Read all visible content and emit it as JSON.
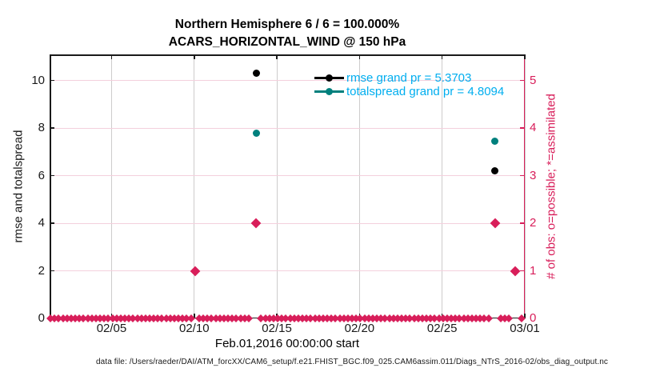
{
  "title": {
    "line1": "Northern Hemisphere 6 / 6 = 100.000%",
    "line2": "ACARS_HORIZONTAL_WIND @ 150 hPa"
  },
  "axes": {
    "left_label": "rmse and totalspread",
    "right_label": "# of obs: o=possible; *=assimilated",
    "x_label": "Feb.01,2016 00:00:00 start"
  },
  "legend": [
    {
      "name": "rmse",
      "label": "rmse grand pr = 5.3703",
      "color": "#000000"
    },
    {
      "name": "totalspread",
      "label": "totalspread grand pr = 4.8094",
      "color": "#00807d"
    }
  ],
  "footer": "data file: /Users/raeder/DAI/ATM_forcXX/CAM6_setup/f.e21.FHIST_BGC.f09_025.CAM6assim.011/Diags_NTrS_2016-02/obs_diag_output.nc",
  "colors": {
    "crimson": "#d81e5a",
    "teal": "#00807d",
    "black": "#000000",
    "legend_text": "#00aeef",
    "grid_vertical": "#cdcccc",
    "grid_horizontal": "#f4d0dd",
    "axis": "#1a1a1a"
  },
  "chart_data": {
    "type": "scatter",
    "x_axis": {
      "unit": "days since Feb 01 2016 00:00",
      "range_days": [
        0.25,
        29
      ],
      "ticks": [
        {
          "label": "02/05",
          "day": 4
        },
        {
          "label": "02/10",
          "day": 9
        },
        {
          "label": "02/15",
          "day": 14
        },
        {
          "label": "02/20",
          "day": 19
        },
        {
          "label": "02/25",
          "day": 24
        },
        {
          "label": "03/01",
          "day": 29
        }
      ]
    },
    "y_left": {
      "ticks": [
        0,
        2,
        4,
        6,
        8,
        10
      ],
      "lim": [
        0,
        11.1
      ]
    },
    "y_right": {
      "ticks": [
        0,
        1,
        2,
        3,
        4,
        5
      ],
      "lim": [
        0,
        5.55
      ]
    },
    "series": [
      {
        "name": "rmse",
        "axis": "left",
        "marker": "circle",
        "color": "#000000",
        "size": 9,
        "grand_pr": 5.3703,
        "points": [
          {
            "day": 12.75,
            "value": 10.3
          },
          {
            "day": 27.2,
            "value": 6.2
          }
        ]
      },
      {
        "name": "totalspread",
        "axis": "left",
        "marker": "circle",
        "color": "#00807d",
        "size": 9,
        "grand_pr": 4.8094,
        "points": [
          {
            "day": 12.75,
            "value": 7.8
          },
          {
            "day": 27.2,
            "value": 7.45
          }
        ]
      },
      {
        "name": "obs-count",
        "axis": "right",
        "marker": "diamond",
        "color": "#d81e5a",
        "size": 9,
        "points": [
          {
            "day": 9.05,
            "value": 1
          },
          {
            "day": 12.75,
            "value": 2
          },
          {
            "day": 27.2,
            "value": 2
          },
          {
            "day": 28.4,
            "value": 1
          }
        ]
      }
    ],
    "obs_zero_band": {
      "axis": "right",
      "value": 0,
      "marker": "diamond",
      "color": "#d81e5a",
      "size": 7,
      "start_day": 0.3,
      "end_day": 28.8,
      "step_day": 0.25,
      "gap_days": [
        9.05,
        12.75,
        27.2,
        28.4
      ],
      "gap_radius": 0.22
    }
  }
}
